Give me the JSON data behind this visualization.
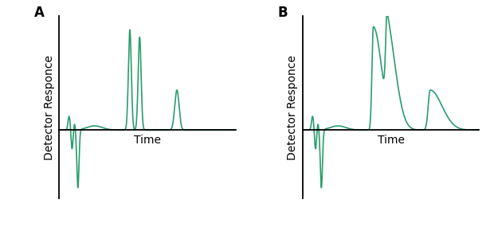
{
  "color": "#2a9d6e",
  "linewidth": 1.2,
  "background": "#ffffff",
  "ylabel": "Detector Responce",
  "xlabel": "Time",
  "label_A": "A",
  "label_B": "B",
  "label_fontsize": 12,
  "axis_label_fontsize": 10
}
